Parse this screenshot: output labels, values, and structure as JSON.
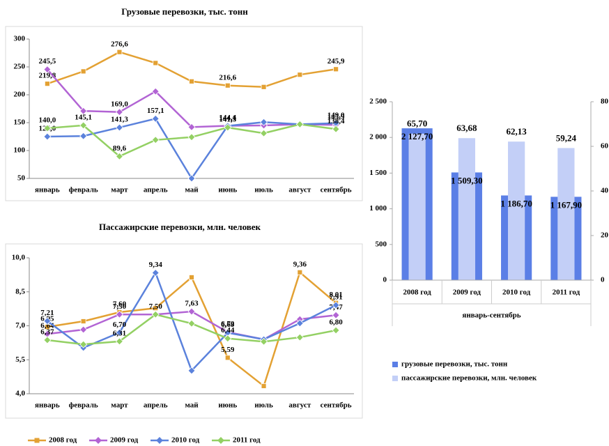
{
  "chart_data": [
    {
      "type": "line",
      "title": "Грузовые перевозки, тыс. тонн",
      "categories": [
        "январь",
        "февраль",
        "март",
        "апрель",
        "май",
        "июнь",
        "июль",
        "август",
        "сентябрь"
      ],
      "ylim": [
        50,
        300
      ],
      "yticks": [
        50,
        100,
        150,
        200,
        250,
        300
      ],
      "series": [
        {
          "color": "#e3a133",
          "values": [
            219.8,
            242,
            276.6,
            257,
            224,
            216.6,
            214,
            236,
            245.9
          ],
          "value_labels": [
            "219,8",
            null,
            "276,6",
            null,
            null,
            "216,6",
            null,
            null,
            "245,9"
          ]
        },
        {
          "color": "#b264d4",
          "values": [
            245.5,
            171,
            169.0,
            206,
            142,
            144.4,
            145,
            147,
            145.9
          ],
          "value_labels": [
            "245,5",
            null,
            "169,0",
            null,
            null,
            "144,4",
            null,
            null,
            "145,9"
          ]
        },
        {
          "color": "#5b82dc",
          "values": [
            125.0,
            126,
            141.3,
            157.1,
            50,
            144.1,
            151,
            147,
            149.0
          ],
          "value_labels": [
            "125,0",
            null,
            "141,3",
            "157,1",
            null,
            "144,1",
            null,
            null,
            "149,0"
          ]
        },
        {
          "color": "#93d063",
          "values": [
            140.0,
            145.1,
            89.6,
            119,
            124,
            141.3,
            131,
            147,
            138.4
          ],
          "value_labels": [
            "140,0",
            "145,1",
            "89,6",
            null,
            null,
            "141,3",
            null,
            null,
            "138,4"
          ]
        }
      ]
    },
    {
      "type": "line",
      "title": "Пассажирские перевозки, млн. человек",
      "categories": [
        "январь",
        "февраль",
        "март",
        "апрель",
        "май",
        "июнь",
        "июль",
        "август",
        "сентябрь"
      ],
      "ylim": [
        4.0,
        10.0
      ],
      "yticks": [
        {
          "value": 4.0,
          "label": "4,0"
        },
        {
          "value": 5.5,
          "label": "5,5"
        },
        {
          "value": 7.0,
          "label": "7,0"
        },
        {
          "value": 8.5,
          "label": "8,5"
        },
        {
          "value": 10.0,
          "label": "10,0"
        }
      ],
      "series": [
        {
          "name": "2008 год",
          "color": "#e3a133",
          "values": [
            6.95,
            7.2,
            7.6,
            7.78,
            9.14,
            5.59,
            4.34,
            9.36,
            8.01
          ],
          "value_labels": [
            "6,95",
            null,
            "7,60",
            null,
            null,
            "5,59",
            null,
            "9,36",
            "8,01"
          ]
        },
        {
          "name": "2009 год",
          "color": "#b264d4",
          "values": [
            6.64,
            6.83,
            7.5,
            7.5,
            7.63,
            6.72,
            6.4,
            7.29,
            7.47
          ],
          "value_labels": [
            "6,64",
            null,
            "7,50",
            null,
            "7,63",
            "6,72",
            null,
            null,
            "7,47"
          ]
        },
        {
          "name": "2010 год",
          "color": "#5b82dc",
          "values": [
            7.21,
            6.03,
            6.7,
            9.34,
            5.02,
            6.69,
            6.4,
            7.11,
            7.91
          ],
          "value_labels": [
            "7,21",
            null,
            "6,70",
            "9,34",
            null,
            "6,69",
            null,
            null,
            "7,91"
          ]
        },
        {
          "name": "2011 год",
          "color": "#93d063",
          "values": [
            6.37,
            6.18,
            6.31,
            7.5,
            7.1,
            6.44,
            6.3,
            6.49,
            6.8
          ],
          "value_labels": [
            "6,37",
            null,
            "6,31",
            "7,50",
            null,
            "6,44",
            null,
            null,
            "6,80"
          ]
        }
      ]
    },
    {
      "type": "bar",
      "categories": [
        "2008 год",
        "2009 год",
        "2010 год",
        "2011 год"
      ],
      "xlabel": "январь-сентябрь",
      "ylim": [
        0,
        2500
      ],
      "yticks": [
        0,
        500,
        {
          "value": 1000,
          "label": "1 000"
        },
        {
          "value": 1500,
          "label": "1 500"
        },
        {
          "value": 2000,
          "label": "2 000"
        },
        {
          "value": 2500,
          "label": "2 500"
        }
      ],
      "y2lim": [
        0,
        80
      ],
      "y2ticks": [
        0,
        20,
        40,
        60,
        80
      ],
      "series": [
        {
          "name": "грузовые перевозки, тыс. тонн",
          "color": "#5b7fe6",
          "values": [
            2127.7,
            1509.3,
            1186.7,
            1167.9
          ],
          "value_labels": [
            "2 127,70",
            "1 509,30",
            "1 186,70",
            "1 167,90"
          ]
        },
        {
          "name": "пассажирские перевозки, млн. человек",
          "color": "#c3cff7",
          "axis": "y2",
          "values": [
            65.7,
            63.68,
            62.13,
            59.24
          ],
          "value_labels": [
            "65,70",
            "63,68",
            "62,13",
            "59,24"
          ]
        }
      ]
    }
  ]
}
